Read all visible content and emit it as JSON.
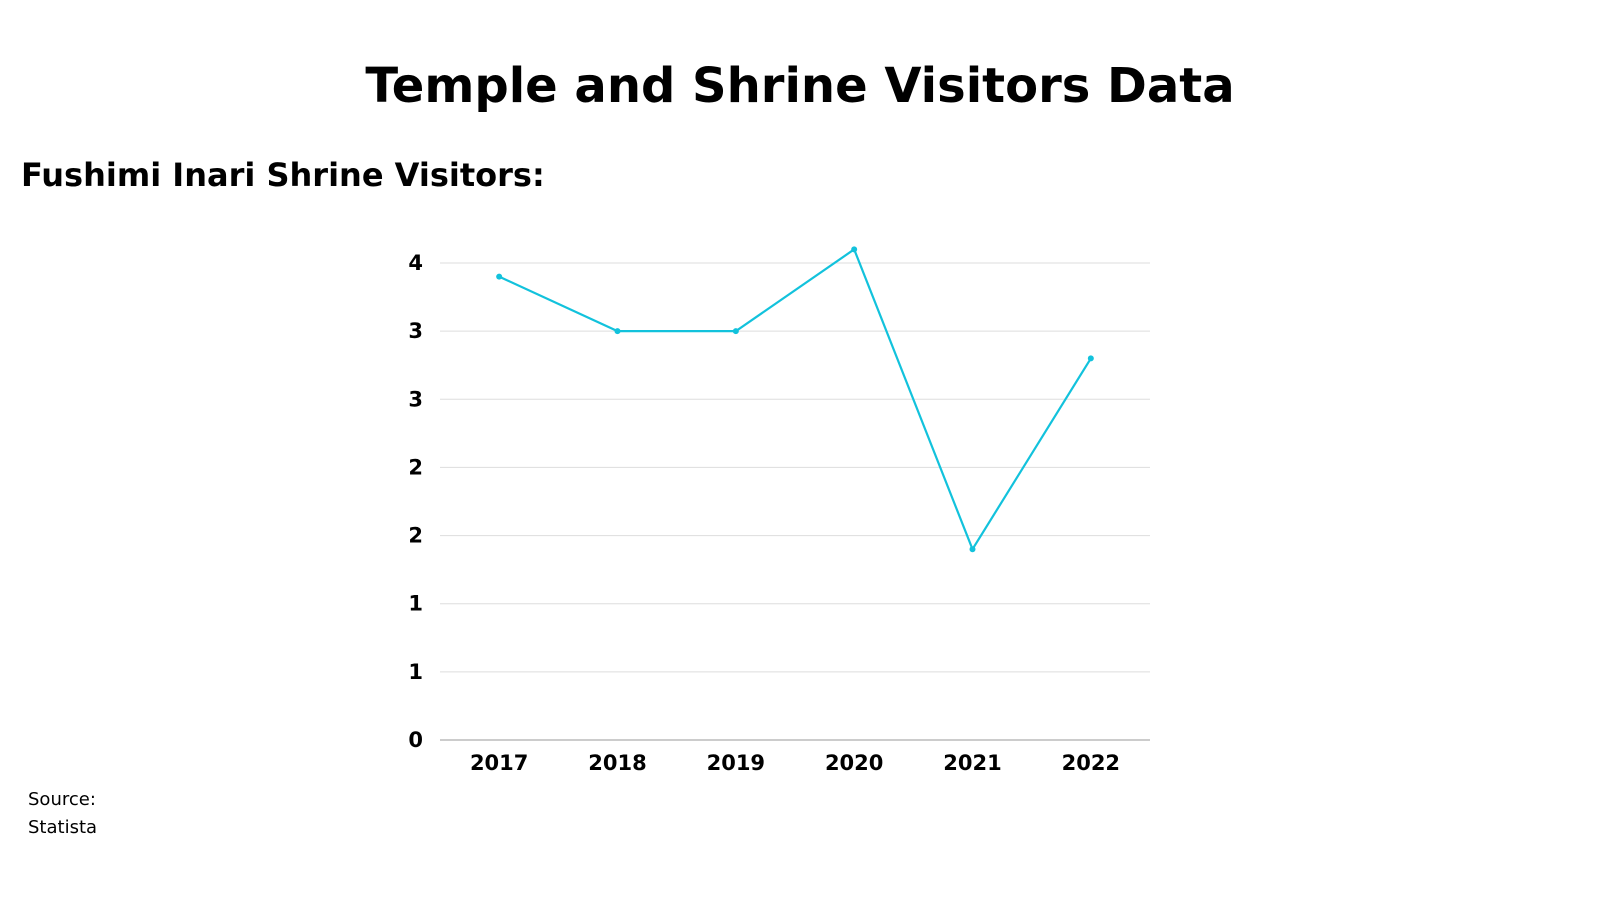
{
  "page": {
    "title": "Temple and Shrine Visitors Data",
    "subtitle": "Fushimi Inari Shrine Visitors:",
    "source_label": "Source:",
    "source_value": "Statista"
  },
  "chart_data": {
    "type": "line",
    "categories": [
      "2017",
      "2018",
      "2019",
      "2020",
      "2021",
      "2022"
    ],
    "series": [
      {
        "values": [
          3.4,
          3.0,
          3.0,
          3.6,
          1.4,
          2.8
        ]
      }
    ],
    "yticks": [
      0,
      0.5,
      1,
      1.5,
      2,
      2.5,
      3,
      3.5
    ],
    "ytick_labels": [
      "0",
      "1",
      "1",
      "2",
      "2",
      "3",
      "3",
      "4"
    ],
    "ylim": [
      0,
      3.5
    ],
    "grid": true,
    "colors": {
      "line": "#12c2dc",
      "grid": "#dddddd",
      "axis": "#cccccc"
    }
  }
}
